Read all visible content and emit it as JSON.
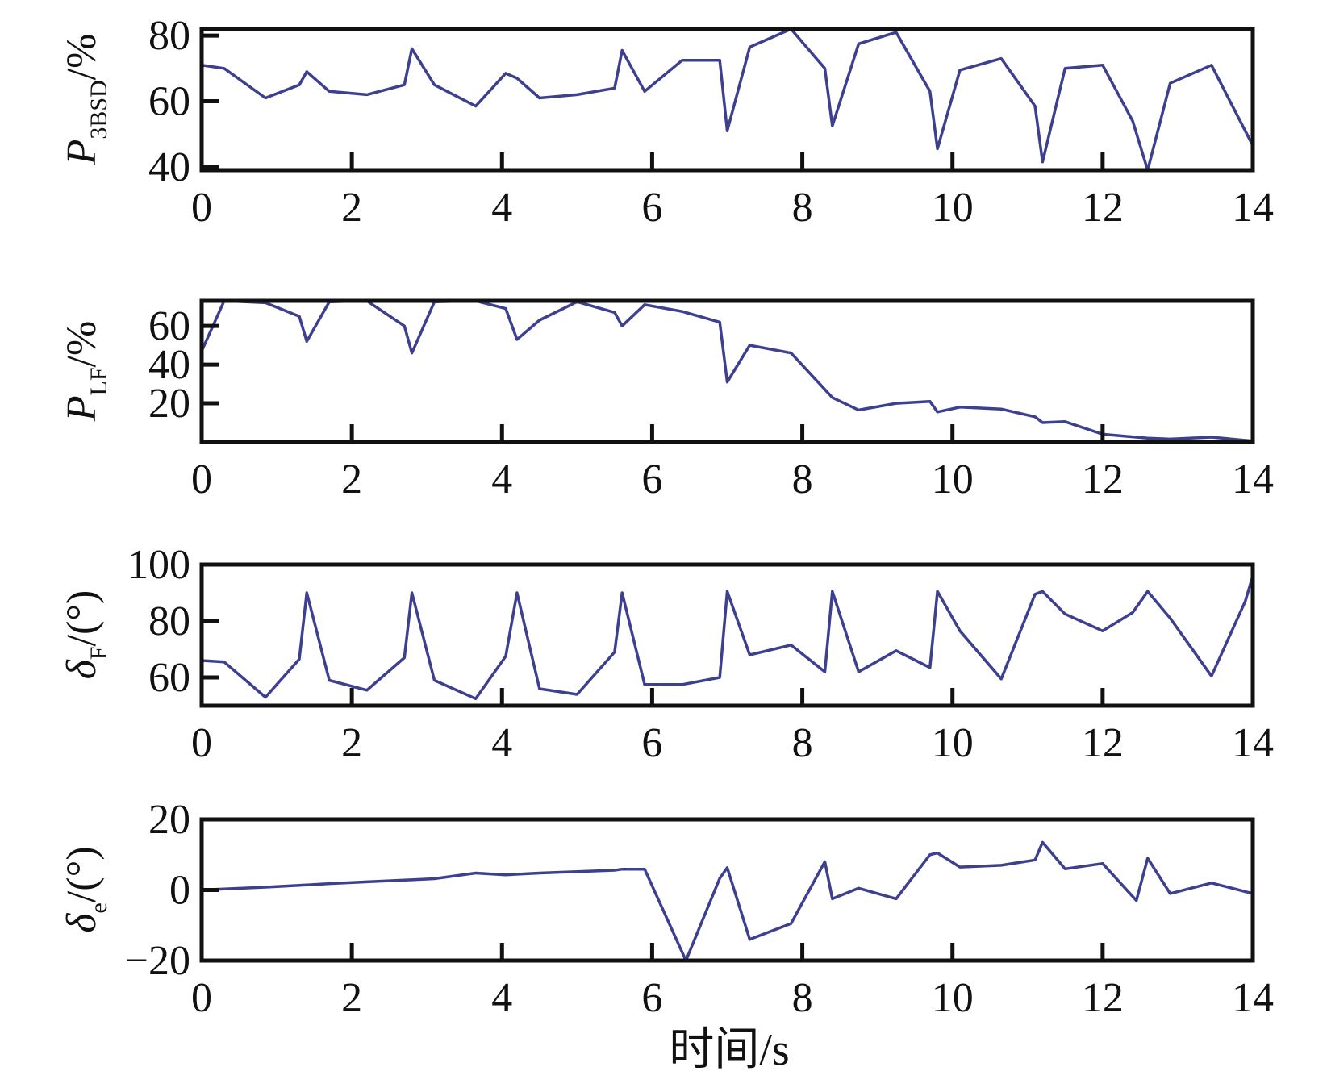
{
  "colors": {
    "line": "#3d3f8f",
    "axis": "#111111"
  },
  "xlabel": "时间/s",
  "chart_data": [
    {
      "type": "line",
      "ylabel": {
        "base": "P",
        "sub": "3BSD",
        "suffix": "/%"
      },
      "xlim": [
        0,
        14
      ],
      "ylim": [
        39,
        82
      ],
      "xticks": [
        0,
        2,
        4,
        6,
        8,
        10,
        12,
        14
      ],
      "xtick_labels": [
        "0",
        "2",
        "4",
        "6",
        "8",
        "10",
        "12",
        "14"
      ],
      "yticks": [
        40,
        60,
        80
      ],
      "ytick_labels": [
        "40",
        "60",
        "80"
      ],
      "series": [
        {
          "x": [
            0,
            0.3,
            0.85,
            1.3,
            1.4,
            1.7,
            2.2,
            2.7,
            2.8,
            3.1,
            3.65,
            4.05,
            4.2,
            4.5,
            5.0,
            5.5,
            5.6,
            5.9,
            6.4,
            6.9,
            7.0,
            7.3,
            7.85,
            8.3,
            8.4,
            8.75,
            9.25,
            9.7,
            9.8,
            10.1,
            10.65,
            11.1,
            11.2,
            11.5,
            12.0,
            12.4,
            12.6,
            12.9,
            13.45,
            14.0
          ],
          "y": [
            71,
            70,
            61,
            65,
            69,
            63,
            62,
            65,
            76,
            65,
            58.5,
            68.5,
            67,
            61,
            62,
            64,
            75.5,
            63,
            72.5,
            72.5,
            51,
            76.5,
            82,
            70,
            52.5,
            77.5,
            81,
            63,
            45.5,
            69.5,
            73,
            58.5,
            41.5,
            70,
            71,
            54,
            39,
            65.5,
            71,
            46.5
          ]
        }
      ]
    },
    {
      "type": "line",
      "ylabel": {
        "base": "P",
        "sub": "LF",
        "suffix": "/%"
      },
      "xlim": [
        0,
        14
      ],
      "ylim": [
        0,
        73
      ],
      "xticks": [
        0,
        2,
        4,
        6,
        8,
        10,
        12,
        14
      ],
      "xtick_labels": [
        "0",
        "2",
        "4",
        "6",
        "8",
        "10",
        "12",
        "14"
      ],
      "yticks": [
        20,
        40,
        60
      ],
      "ytick_labels": [
        "20",
        "40",
        "60"
      ],
      "series": [
        {
          "x": [
            0,
            0.3,
            0.85,
            1.3,
            1.4,
            1.7,
            2.2,
            2.7,
            2.8,
            3.1,
            3.65,
            4.05,
            4.2,
            4.5,
            5.0,
            5.5,
            5.6,
            5.9,
            6.4,
            6.9,
            7.0,
            7.3,
            7.85,
            8.4,
            8.75,
            9.25,
            9.7,
            9.8,
            10.1,
            10.65,
            11.1,
            11.2,
            11.5,
            12.0,
            12.6,
            12.9,
            13.45,
            14.0
          ],
          "y": [
            47,
            73,
            72,
            65,
            52,
            72.5,
            73,
            60,
            46,
            72.5,
            73,
            69,
            53,
            63,
            72.5,
            67,
            60,
            71,
            67.5,
            62,
            31,
            50,
            46,
            23,
            16.5,
            20,
            21,
            15.5,
            18,
            17,
            13,
            10,
            10.5,
            4,
            2,
            1.5,
            2.5,
            0.5
          ]
        }
      ]
    },
    {
      "type": "line",
      "ylabel": {
        "base": "δ",
        "sub": "F",
        "suffix": "/(°)"
      },
      "xlim": [
        0,
        14
      ],
      "ylim": [
        50,
        100
      ],
      "xticks": [
        0,
        2,
        4,
        6,
        8,
        10,
        12,
        14
      ],
      "xtick_labels": [
        "0",
        "2",
        "4",
        "6",
        "8",
        "10",
        "12",
        "14"
      ],
      "yticks": [
        60,
        80,
        100
      ],
      "ytick_labels": [
        "60",
        "80",
        "100"
      ],
      "series": [
        {
          "x": [
            0,
            0.3,
            0.85,
            1.3,
            1.4,
            1.7,
            2.2,
            2.7,
            2.8,
            3.1,
            3.65,
            4.05,
            4.2,
            4.5,
            5.0,
            5.5,
            5.6,
            5.9,
            6.4,
            6.9,
            7.0,
            7.3,
            7.85,
            8.3,
            8.4,
            8.75,
            9.25,
            9.7,
            9.8,
            10.1,
            10.65,
            11.1,
            11.2,
            11.5,
            12.0,
            12.4,
            12.6,
            12.9,
            13.45,
            13.9,
            14.0
          ],
          "y": [
            66,
            65.5,
            53,
            66.5,
            90,
            59,
            55.5,
            67,
            90,
            59,
            52.5,
            67.5,
            90,
            56,
            54,
            69,
            90,
            57.5,
            57.5,
            60,
            90.5,
            68,
            71.5,
            62,
            90.5,
            62,
            69.5,
            63.5,
            90.5,
            76.5,
            59.5,
            89.5,
            90.5,
            82.5,
            76.5,
            83,
            90.5,
            81,
            60.5,
            87,
            96
          ]
        }
      ]
    },
    {
      "type": "line",
      "ylabel": {
        "base": "δ",
        "sub": "e",
        "suffix": "/(°)"
      },
      "xlim": [
        0,
        14
      ],
      "ylim": [
        -20,
        20
      ],
      "xticks": [
        0,
        2,
        4,
        6,
        8,
        10,
        12,
        14
      ],
      "xtick_labels": [
        "0",
        "2",
        "4",
        "6",
        "8",
        "10",
        "12",
        "14"
      ],
      "yticks": [
        -20,
        0,
        20
      ],
      "ytick_labels": [
        "−20",
        "0",
        "20"
      ],
      "series": [
        {
          "x": [
            0,
            0.3,
            0.85,
            1.3,
            1.7,
            2.2,
            2.7,
            3.1,
            3.65,
            4.05,
            4.5,
            5.0,
            5.5,
            5.6,
            5.9,
            6.45,
            6.9,
            7.0,
            7.3,
            7.85,
            8.3,
            8.4,
            8.75,
            9.25,
            9.7,
            9.8,
            10.1,
            10.65,
            11.1,
            11.2,
            11.5,
            12.0,
            12.45,
            12.6,
            12.9,
            13.45,
            14.0
          ],
          "y": [
            0,
            0.3,
            0.8,
            1.3,
            1.8,
            2.3,
            2.8,
            3.2,
            4.8,
            4.3,
            4.8,
            5.2,
            5.6,
            5.9,
            5.9,
            -20,
            3.3,
            6.3,
            -14,
            -9.5,
            8,
            -2.5,
            0.5,
            -2.5,
            10,
            10.5,
            6.5,
            7,
            8.5,
            13.5,
            6,
            7.5,
            -3,
            9,
            -1,
            2,
            -1
          ]
        }
      ]
    }
  ]
}
